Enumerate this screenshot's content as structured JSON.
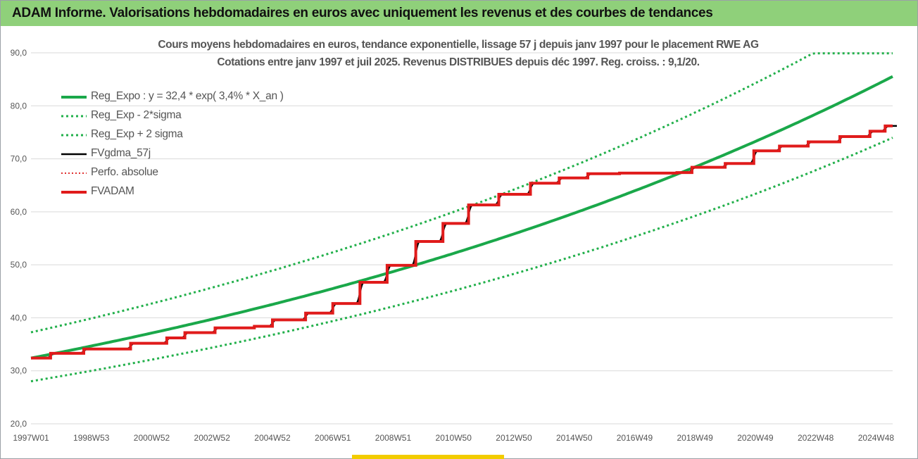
{
  "header": {
    "title": "ADAM Informe. Valorisations hebdomadaires en euros avec uniquement les revenus et des courbes de tendances"
  },
  "colors": {
    "header_bg": "#8fd07a",
    "trend": "#1aa84a",
    "band": "#22b04b",
    "fvgdma": "#000000",
    "perfo": "#e03030",
    "fvadam": "#e01b1b",
    "grid": "#d9d9d9",
    "accent": "#f2cc00"
  },
  "chart_data": {
    "type": "line",
    "title_line1": "Cours moyens hebdomadaires en euros, tendance exponentielle, lissage 57 j depuis janv 1997 pour le placement RWE AG",
    "title_line2": "Cotations entre janv 1997 et juil 2025. Revenus DISTRIBUES depuis déc 1997. Reg. croiss. : 9,1/20.",
    "ylim": [
      20,
      90
    ],
    "y_ticks": [
      "20,0",
      "30,0",
      "40,0",
      "50,0",
      "60,0",
      "70,0",
      "80,0",
      "90,0"
    ],
    "y_tick_values": [
      20,
      30,
      40,
      50,
      60,
      70,
      80,
      90
    ],
    "xlim": [
      1997.0,
      2025.55
    ],
    "x_ticks": [
      "1997W01",
      "1998W53",
      "2000W52",
      "2002W52",
      "2004W52",
      "2006W51",
      "2008W51",
      "2010W50",
      "2012W50",
      "2014W50",
      "2016W49",
      "2018W49",
      "2020W49",
      "2022W48",
      "2024W48"
    ],
    "x_tick_values": [
      1997.0,
      1999.0,
      2001.0,
      2003.0,
      2005.0,
      2007.0,
      2009.0,
      2011.0,
      2013.0,
      2015.0,
      2017.0,
      2019.0,
      2021.0,
      2023.0,
      2025.0
    ],
    "grid": "horizontal",
    "legend_position": "top-left",
    "trend": {
      "a": 32.4,
      "growth": 0.034,
      "band_low_factor": 0.865,
      "band_high_factor": 1.15,
      "band_cap": 89.9
    },
    "steps": [
      [
        1997.0,
        32.4
      ],
      [
        1997.65,
        33.3
      ],
      [
        1998.75,
        34.1
      ],
      [
        2000.3,
        35.2
      ],
      [
        2001.5,
        36.2
      ],
      [
        2002.1,
        37.2
      ],
      [
        2003.1,
        38.1
      ],
      [
        2004.4,
        38.4
      ],
      [
        2005.0,
        39.6
      ],
      [
        2006.1,
        40.9
      ],
      [
        2007.0,
        42.7
      ],
      [
        2007.9,
        46.7
      ],
      [
        2008.8,
        49.9
      ],
      [
        2009.75,
        54.4
      ],
      [
        2010.65,
        57.8
      ],
      [
        2011.5,
        61.3
      ],
      [
        2012.5,
        63.3
      ],
      [
        2013.55,
        65.4
      ],
      [
        2014.5,
        66.4
      ],
      [
        2015.45,
        67.2
      ],
      [
        2016.5,
        67.3
      ],
      [
        2018.4,
        67.4
      ],
      [
        2018.9,
        68.4
      ],
      [
        2020.0,
        69.1
      ],
      [
        2020.95,
        71.5
      ],
      [
        2021.8,
        72.4
      ],
      [
        2022.75,
        73.2
      ],
      [
        2023.8,
        74.2
      ],
      [
        2024.8,
        75.2
      ],
      [
        2025.3,
        76.2
      ],
      [
        2025.55,
        76.2
      ]
    ],
    "series": [
      {
        "name": "Reg_Expo : y = 32,4 * exp( 3,4% *  X_an )",
        "style": "solid",
        "color": "#1aa84a"
      },
      {
        "name": "Reg_Exp - 2*sigma",
        "style": "dotted",
        "color": "#22b04b"
      },
      {
        "name": "Reg_Exp + 2 sigma",
        "style": "dotted",
        "color": "#22b04b"
      },
      {
        "name": "FVgdma_57j",
        "style": "solid-thin",
        "color": "#000000"
      },
      {
        "name": "Perfo. absolue",
        "style": "dotted-thin",
        "color": "#e03030"
      },
      {
        "name": "FVADAM",
        "style": "solid-thick",
        "color": "#e01b1b"
      }
    ]
  }
}
